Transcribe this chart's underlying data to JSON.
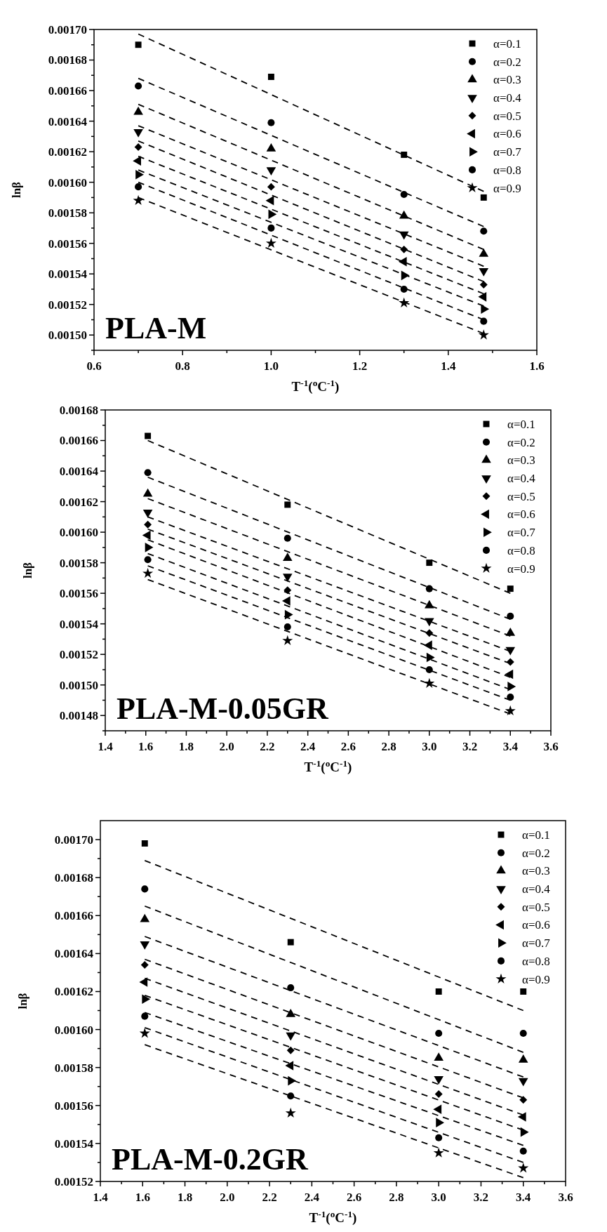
{
  "chart_data": [
    {
      "type": "scatter",
      "xlabel": "T$^{-1}$($^{o}$C$^{-1}$)",
      "ylabel": "lnβ",
      "annotations": [
        "PLA-M"
      ],
      "legend": "top right",
      "xlim": [
        0.6,
        1.6
      ],
      "xticks": [
        0.6,
        {
          "value": 0.7,
          "label": null
        },
        0.8,
        {
          "value": 0.9,
          "label": null
        },
        {
          "value": 1.0,
          "label": "1.0"
        },
        {
          "value": 1.1,
          "label": null
        },
        1.2,
        {
          "value": 1.3,
          "label": null
        },
        1.4,
        {
          "value": 1.5,
          "label": null
        },
        1.6
      ],
      "ylim": [
        0.00149,
        0.0017
      ],
      "yticks": [
        {
          "value": 0.00149,
          "label": null
        },
        {
          "value": 0.0015,
          "label": "0.00150"
        },
        {
          "value": 0.00151,
          "label": null
        },
        {
          "value": 0.00152,
          "label": "0.00152"
        },
        {
          "value": 0.00153,
          "label": null
        },
        {
          "value": 0.00154,
          "label": "0.00154"
        },
        {
          "value": 0.00155,
          "label": null
        },
        {
          "value": 0.00156,
          "label": "0.00156"
        },
        {
          "value": 0.00157,
          "label": null
        },
        {
          "value": 0.00158,
          "label": "0.00158"
        },
        {
          "value": 0.00159,
          "label": null
        },
        {
          "value": 0.0016,
          "label": "0.00160"
        },
        {
          "value": 0.00161,
          "label": null
        },
        {
          "value": 0.00162,
          "label": "0.00162"
        },
        {
          "value": 0.00163,
          "label": null
        },
        {
          "value": 0.00164,
          "label": "0.00164"
        },
        {
          "value": 0.00165,
          "label": null
        },
        {
          "value": 0.00166,
          "label": "0.00166"
        },
        {
          "value": 0.00167,
          "label": null
        },
        {
          "value": 0.00168,
          "label": "0.00168"
        },
        {
          "value": 0.00169,
          "label": null
        },
        {
          "value": 0.0017,
          "label": "0.00170"
        }
      ],
      "series": [
        {
          "name": "α=0.1",
          "color": "#000000",
          "marker": "square",
          "x": [
            0.7,
            1.0,
            1.3,
            1.48
          ],
          "values": [
            0.00169,
            0.001669,
            0.001618,
            0.00159
          ]
        },
        {
          "name": "α=0.2",
          "color": "#000000",
          "marker": "circle",
          "x": [
            0.7,
            1.0,
            1.3,
            1.48
          ],
          "values": [
            0.001663,
            0.001639,
            0.001592,
            0.001568
          ]
        },
        {
          "name": "α=0.3",
          "color": "#000000",
          "marker": "triangle",
          "x": [
            0.7,
            1.0,
            1.3,
            1.48
          ],
          "values": [
            0.001646,
            0.001622,
            0.001578,
            0.001553
          ]
        },
        {
          "name": "α=0.4",
          "color": "#000000",
          "marker": "triangle-down",
          "x": [
            0.7,
            1.0,
            1.3,
            1.48
          ],
          "values": [
            0.001633,
            0.001608,
            0.001566,
            0.001542
          ]
        },
        {
          "name": "α=0.5",
          "color": "#000000",
          "marker": "diamond",
          "x": [
            0.7,
            1.0,
            1.3,
            1.48
          ],
          "values": [
            0.001623,
            0.001597,
            0.001556,
            0.001533
          ]
        },
        {
          "name": "α=0.6",
          "color": "#000000",
          "marker": "triangle-left",
          "x": [
            0.7,
            1.0,
            1.3,
            1.48
          ],
          "values": [
            0.001614,
            0.001588,
            0.001548,
            0.001525
          ]
        },
        {
          "name": "α=0.7",
          "color": "#000000",
          "marker": "triangle-right",
          "x": [
            0.7,
            1.0,
            1.3,
            1.48
          ],
          "values": [
            0.001605,
            0.001579,
            0.001539,
            0.001517
          ]
        },
        {
          "name": "α=0.8",
          "color": "#000000",
          "marker": "circle",
          "x": [
            0.7,
            1.0,
            1.3,
            1.48
          ],
          "values": [
            0.001597,
            0.00157,
            0.00153,
            0.001509
          ]
        },
        {
          "name": "α=0.9",
          "color": "#000000",
          "marker": "star",
          "x": [
            0.7,
            1.0,
            1.3,
            1.48
          ],
          "values": [
            0.001588,
            0.00156,
            0.001521,
            0.0015
          ]
        },
        {
          "type": "line",
          "color": "#000000",
          "line_style": "dashed",
          "x": [
            0.7,
            1.48
          ],
          "values": [
            0.001697,
            0.001594
          ]
        },
        {
          "type": "line",
          "color": "#000000",
          "line_style": "dashed",
          "x": [
            0.7,
            1.48
          ],
          "values": [
            0.001668,
            0.001571
          ]
        },
        {
          "type": "line",
          "color": "#000000",
          "line_style": "dashed",
          "x": [
            0.7,
            1.48
          ],
          "values": [
            0.001651,
            0.001556
          ]
        },
        {
          "type": "line",
          "color": "#000000",
          "line_style": "dashed",
          "x": [
            0.7,
            1.48
          ],
          "values": [
            0.001637,
            0.001545
          ]
        },
        {
          "type": "line",
          "color": "#000000",
          "line_style": "dashed",
          "x": [
            0.7,
            1.48
          ],
          "values": [
            0.001627,
            0.001535
          ]
        },
        {
          "type": "line",
          "color": "#000000",
          "line_style": "dashed",
          "x": [
            0.7,
            1.48
          ],
          "values": [
            0.001617,
            0.001527
          ]
        },
        {
          "type": "line",
          "color": "#000000",
          "line_style": "dashed",
          "x": [
            0.7,
            1.48
          ],
          "values": [
            0.001608,
            0.001519
          ]
        },
        {
          "type": "line",
          "color": "#000000",
          "line_style": "dashed",
          "x": [
            0.7,
            1.48
          ],
          "values": [
            0.0016,
            0.00151
          ]
        },
        {
          "type": "line",
          "color": "#000000",
          "line_style": "dashed",
          "x": [
            0.7,
            1.48
          ],
          "values": [
            0.00159,
            0.001501
          ]
        }
      ]
    },
    {
      "type": "scatter",
      "xlabel": "T$^{-1}$($^{o}$C$^{-1}$)",
      "ylabel": "lnβ",
      "annotations": [
        "PLA-M-0.05GR"
      ],
      "legend": "top right",
      "xlim": [
        1.4,
        3.6
      ],
      "xticks": [
        1.4,
        {
          "value": 1.5,
          "label": null
        },
        1.6,
        {
          "value": 1.7,
          "label": null
        },
        1.8,
        {
          "value": 1.9,
          "label": null
        },
        {
          "value": 2.0,
          "label": "2.0"
        },
        {
          "value": 2.1,
          "label": null
        },
        2.2,
        {
          "value": 2.3,
          "label": null
        },
        2.4,
        {
          "value": 2.5,
          "label": null
        },
        2.6,
        {
          "value": 2.7,
          "label": null
        },
        2.8,
        {
          "value": 2.9,
          "label": null
        },
        {
          "value": 3.0,
          "label": "3.0"
        },
        {
          "value": 3.1,
          "label": null
        },
        3.2,
        {
          "value": 3.3,
          "label": null
        },
        3.4,
        {
          "value": 3.5,
          "label": null
        },
        3.6
      ],
      "ylim": [
        0.00147,
        0.00168
      ],
      "yticks": [
        {
          "value": 0.00147,
          "label": null
        },
        {
          "value": 0.00148,
          "label": "0.00148"
        },
        {
          "value": 0.00149,
          "label": null
        },
        {
          "value": 0.0015,
          "label": "0.00150"
        },
        {
          "value": 0.00151,
          "label": null
        },
        {
          "value": 0.00152,
          "label": "0.00152"
        },
        {
          "value": 0.00153,
          "label": null
        },
        {
          "value": 0.00154,
          "label": "0.00154"
        },
        {
          "value": 0.00155,
          "label": null
        },
        {
          "value": 0.00156,
          "label": "0.00156"
        },
        {
          "value": 0.00157,
          "label": null
        },
        {
          "value": 0.00158,
          "label": "0.00158"
        },
        {
          "value": 0.00159,
          "label": null
        },
        {
          "value": 0.0016,
          "label": "0.00160"
        },
        {
          "value": 0.00161,
          "label": null
        },
        {
          "value": 0.00162,
          "label": "0.00162"
        },
        {
          "value": 0.00163,
          "label": null
        },
        {
          "value": 0.00164,
          "label": "0.00164"
        },
        {
          "value": 0.00165,
          "label": null
        },
        {
          "value": 0.00166,
          "label": "0.00166"
        },
        {
          "value": 0.00167,
          "label": null
        },
        {
          "value": 0.00168,
          "label": "0.00168"
        }
      ],
      "series": [
        {
          "name": "α=0.1",
          "color": "#000000",
          "marker": "square",
          "x": [
            1.61,
            2.3,
            3.0,
            3.4
          ],
          "values": [
            0.001663,
            0.001618,
            0.00158,
            0.001563
          ]
        },
        {
          "name": "α=0.2",
          "color": "#000000",
          "marker": "circle",
          "x": [
            1.61,
            2.3,
            3.0,
            3.4
          ],
          "values": [
            0.001639,
            0.001596,
            0.001563,
            0.001545
          ]
        },
        {
          "name": "α=0.3",
          "color": "#000000",
          "marker": "triangle",
          "x": [
            1.61,
            2.3,
            3.0,
            3.4
          ],
          "values": [
            0.001625,
            0.001583,
            0.001552,
            0.001534
          ]
        },
        {
          "name": "α=0.4",
          "color": "#000000",
          "marker": "triangle-down",
          "x": [
            1.61,
            2.3,
            3.0,
            3.4
          ],
          "values": [
            0.001613,
            0.001571,
            0.001542,
            0.001523
          ]
        },
        {
          "name": "α=0.5",
          "color": "#000000",
          "marker": "diamond",
          "x": [
            1.61,
            2.3,
            3.0,
            3.4
          ],
          "values": [
            0.001605,
            0.001562,
            0.001534,
            0.001515
          ]
        },
        {
          "name": "α=0.6",
          "color": "#000000",
          "marker": "triangle-left",
          "x": [
            1.61,
            2.3,
            3.0,
            3.4
          ],
          "values": [
            0.001598,
            0.001555,
            0.001526,
            0.001507
          ]
        },
        {
          "name": "α=0.7",
          "color": "#000000",
          "marker": "triangle-right",
          "x": [
            1.61,
            2.3,
            3.0,
            3.4
          ],
          "values": [
            0.00159,
            0.001546,
            0.001518,
            0.001499
          ]
        },
        {
          "name": "α=0.8",
          "color": "#000000",
          "marker": "circle",
          "x": [
            1.61,
            2.3,
            3.0,
            3.4
          ],
          "values": [
            0.001582,
            0.001538,
            0.00151,
            0.001492
          ]
        },
        {
          "name": "α=0.9",
          "color": "#000000",
          "marker": "star",
          "x": [
            1.61,
            2.3,
            3.0,
            3.4
          ],
          "values": [
            0.001573,
            0.001529,
            0.001501,
            0.001483
          ]
        },
        {
          "type": "line",
          "color": "#000000",
          "line_style": "dashed",
          "x": [
            1.61,
            3.4
          ],
          "values": [
            0.00166,
            0.00156
          ]
        },
        {
          "type": "line",
          "color": "#000000",
          "line_style": "dashed",
          "x": [
            1.61,
            3.4
          ],
          "values": [
            0.001636,
            0.001543
          ]
        },
        {
          "type": "line",
          "color": "#000000",
          "line_style": "dashed",
          "x": [
            1.61,
            3.4
          ],
          "values": [
            0.001622,
            0.001532
          ]
        },
        {
          "type": "line",
          "color": "#000000",
          "line_style": "dashed",
          "x": [
            1.61,
            3.4
          ],
          "values": [
            0.00161,
            0.001522
          ]
        },
        {
          "type": "line",
          "color": "#000000",
          "line_style": "dashed",
          "x": [
            1.61,
            3.4
          ],
          "values": [
            0.001602,
            0.001514
          ]
        },
        {
          "type": "line",
          "color": "#000000",
          "line_style": "dashed",
          "x": [
            1.61,
            3.4
          ],
          "values": [
            0.001595,
            0.001505
          ]
        },
        {
          "type": "line",
          "color": "#000000",
          "line_style": "dashed",
          "x": [
            1.61,
            3.4
          ],
          "values": [
            0.001586,
            0.001497
          ]
        },
        {
          "type": "line",
          "color": "#000000",
          "line_style": "dashed",
          "x": [
            1.61,
            3.4
          ],
          "values": [
            0.001578,
            0.00149
          ]
        },
        {
          "type": "line",
          "color": "#000000",
          "line_style": "dashed",
          "x": [
            1.61,
            3.4
          ],
          "values": [
            0.001569,
            0.001481
          ]
        }
      ]
    },
    {
      "type": "scatter",
      "xlabel": "T$^{-1}$($^{o}$C$^{-1}$)",
      "ylabel": "lnβ",
      "annotations": [
        "PLA-M-0.2GR"
      ],
      "legend": "top right",
      "xlim": [
        1.4,
        3.6
      ],
      "xticks": [
        1.4,
        {
          "value": 1.5,
          "label": null
        },
        1.6,
        {
          "value": 1.7,
          "label": null
        },
        1.8,
        {
          "value": 1.9,
          "label": null
        },
        {
          "value": 2.0,
          "label": "2.0"
        },
        {
          "value": 2.1,
          "label": null
        },
        2.2,
        {
          "value": 2.3,
          "label": null
        },
        2.4,
        {
          "value": 2.5,
          "label": null
        },
        2.6,
        {
          "value": 2.7,
          "label": null
        },
        2.8,
        {
          "value": 2.9,
          "label": null
        },
        {
          "value": 3.0,
          "label": "3.0"
        },
        {
          "value": 3.1,
          "label": null
        },
        3.2,
        {
          "value": 3.3,
          "label": null
        },
        3.4,
        {
          "value": 3.5,
          "label": null
        },
        3.6
      ],
      "ylim": [
        0.00152,
        0.00171
      ],
      "yticks": [
        {
          "value": 0.00152,
          "label": "0.00152"
        },
        {
          "value": 0.00153,
          "label": null
        },
        {
          "value": 0.00154,
          "label": "0.00154"
        },
        {
          "value": 0.00155,
          "label": null
        },
        {
          "value": 0.00156,
          "label": "0.00156"
        },
        {
          "value": 0.00157,
          "label": null
        },
        {
          "value": 0.00158,
          "label": "0.00158"
        },
        {
          "value": 0.00159,
          "label": null
        },
        {
          "value": 0.0016,
          "label": "0.00160"
        },
        {
          "value": 0.00161,
          "label": null
        },
        {
          "value": 0.00162,
          "label": "0.00162"
        },
        {
          "value": 0.00163,
          "label": null
        },
        {
          "value": 0.00164,
          "label": "0.00164"
        },
        {
          "value": 0.00165,
          "label": null
        },
        {
          "value": 0.00166,
          "label": "0.00166"
        },
        {
          "value": 0.00167,
          "label": null
        },
        {
          "value": 0.00168,
          "label": "0.00168"
        },
        {
          "value": 0.00169,
          "label": null
        },
        {
          "value": 0.0017,
          "label": "0.00170"
        }
      ],
      "series": [
        {
          "name": "α=0.1",
          "color": "#000000",
          "marker": "square",
          "x": [
            1.61,
            2.3,
            3.0,
            3.4
          ],
          "values": [
            0.001698,
            0.001646,
            0.00162,
            0.00162
          ]
        },
        {
          "name": "α=0.2",
          "color": "#000000",
          "marker": "circle",
          "x": [
            1.61,
            2.3,
            3.0,
            3.4
          ],
          "values": [
            0.001674,
            0.001622,
            0.001598,
            0.001598
          ]
        },
        {
          "name": "α=0.3",
          "color": "#000000",
          "marker": "triangle",
          "x": [
            1.61,
            2.3,
            3.0,
            3.4
          ],
          "values": [
            0.001658,
            0.001608,
            0.001585,
            0.001584
          ]
        },
        {
          "name": "α=0.4",
          "color": "#000000",
          "marker": "triangle-down",
          "x": [
            1.61,
            2.3,
            3.0,
            3.4
          ],
          "values": [
            0.001645,
            0.001597,
            0.001574,
            0.001573
          ]
        },
        {
          "name": "α=0.5",
          "color": "#000000",
          "marker": "diamond",
          "x": [
            1.61,
            2.3,
            3.0,
            3.4
          ],
          "values": [
            0.001634,
            0.001589,
            0.001566,
            0.001563
          ]
        },
        {
          "name": "α=0.6",
          "color": "#000000",
          "marker": "triangle-left",
          "x": [
            1.61,
            2.3,
            3.0,
            3.4
          ],
          "values": [
            0.001625,
            0.001581,
            0.001558,
            0.001554
          ]
        },
        {
          "name": "α=0.7",
          "color": "#000000",
          "marker": "triangle-right",
          "x": [
            1.61,
            2.3,
            3.0,
            3.4
          ],
          "values": [
            0.001616,
            0.001573,
            0.001551,
            0.001546
          ]
        },
        {
          "name": "α=0.8",
          "color": "#000000",
          "marker": "circle",
          "x": [
            1.61,
            2.3,
            3.0,
            3.4
          ],
          "values": [
            0.001607,
            0.001565,
            0.001543,
            0.001536
          ]
        },
        {
          "name": "α=0.9",
          "color": "#000000",
          "marker": "star",
          "x": [
            1.61,
            2.3,
            3.0,
            3.4
          ],
          "values": [
            0.001598,
            0.001556,
            0.001535,
            0.001527
          ]
        },
        {
          "type": "line",
          "color": "#000000",
          "line_style": "dashed",
          "x": [
            1.61,
            3.4
          ],
          "values": [
            0.001689,
            0.00161
          ]
        },
        {
          "type": "line",
          "color": "#000000",
          "line_style": "dashed",
          "x": [
            1.61,
            3.4
          ],
          "values": [
            0.001665,
            0.001588
          ]
        },
        {
          "type": "line",
          "color": "#000000",
          "line_style": "dashed",
          "x": [
            1.61,
            3.4
          ],
          "values": [
            0.001649,
            0.001575
          ]
        },
        {
          "type": "line",
          "color": "#000000",
          "line_style": "dashed",
          "x": [
            1.61,
            3.4
          ],
          "values": [
            0.001637,
            0.001564
          ]
        },
        {
          "type": "line",
          "color": "#000000",
          "line_style": "dashed",
          "x": [
            1.61,
            3.4
          ],
          "values": [
            0.001627,
            0.001555
          ]
        },
        {
          "type": "line",
          "color": "#000000",
          "line_style": "dashed",
          "x": [
            1.61,
            3.4
          ],
          "values": [
            0.001618,
            0.001547
          ]
        },
        {
          "type": "line",
          "color": "#000000",
          "line_style": "dashed",
          "x": [
            1.61,
            3.4
          ],
          "values": [
            0.001609,
            0.001539
          ]
        },
        {
          "type": "line",
          "color": "#000000",
          "line_style": "dashed",
          "x": [
            1.61,
            3.4
          ],
          "values": [
            0.001601,
            0.00153
          ]
        },
        {
          "type": "line",
          "color": "#000000",
          "line_style": "dashed",
          "x": [
            1.61,
            3.4
          ],
          "values": [
            0.001592,
            0.001522
          ]
        }
      ]
    }
  ]
}
